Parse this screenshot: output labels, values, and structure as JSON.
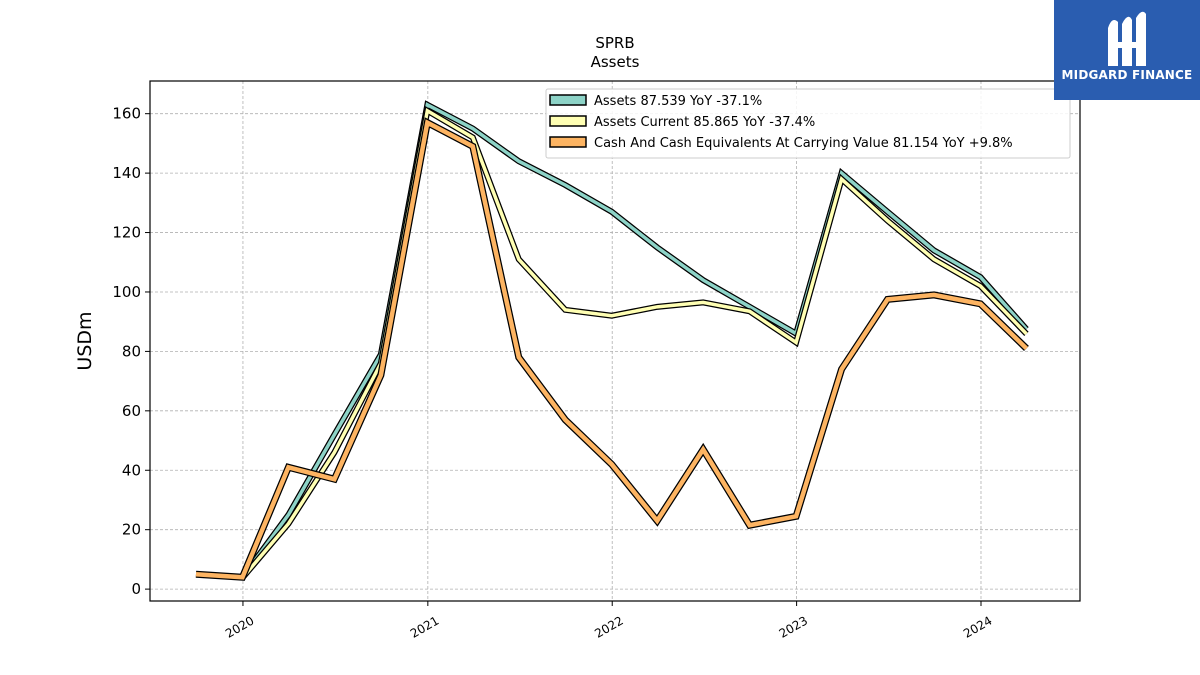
{
  "chart_data": {
    "type": "line",
    "title": "SPRB",
    "subtitle": "Assets",
    "ylabel": "USDm",
    "xlabel": "",
    "xlim": [
      "2019-07-01",
      "2024-07-15"
    ],
    "ylim": [
      -4,
      171
    ],
    "x_ticks": [
      "2020-01-01",
      "2021-01-01",
      "2022-01-01",
      "2023-01-01",
      "2024-01-01"
    ],
    "x_tick_labels": [
      "2020",
      "2021",
      "2022",
      "2023",
      "2024"
    ],
    "y_ticks": [
      0,
      20,
      40,
      60,
      80,
      100,
      120,
      140,
      160
    ],
    "y_tick_labels": [
      "0",
      "20",
      "40",
      "60",
      "80",
      "100",
      "120",
      "140",
      "160"
    ],
    "grid": true,
    "legend_position": "top-right",
    "x": [
      "2019-09-30",
      "2019-12-31",
      "2020-03-31",
      "2020-06-30",
      "2020-09-30",
      "2020-12-31",
      "2021-03-31",
      "2021-06-30",
      "2021-09-30",
      "2021-12-31",
      "2022-03-31",
      "2022-06-30",
      "2022-09-30",
      "2022-12-31",
      "2023-03-31",
      "2023-06-30",
      "2023-09-30",
      "2023-12-31",
      "2024-03-31"
    ],
    "series": [
      {
        "name": "Assets  87.539 YoY -37.1%",
        "color": "#8dd3c7",
        "values": [
          null,
          4.0,
          25.0,
          52.0,
          79.0,
          163.0,
          155.0,
          144.0,
          136.0,
          127.0,
          115.0,
          104.0,
          95.0,
          86.0,
          140.0,
          127.0,
          114.0,
          105.0,
          87.5
        ]
      },
      {
        "name": "Assets Current  85.865 YoY -37.4%",
        "color": "#ffffb3",
        "values": [
          null,
          3.8,
          22.0,
          46.0,
          76.0,
          161.0,
          152.0,
          111.0,
          94.0,
          92.0,
          95.0,
          96.5,
          93.5,
          83.0,
          138.0,
          124.0,
          111.0,
          102.0,
          85.9
        ]
      },
      {
        "name": "Cash And Cash Equivalents At Carrying Value  81.154 YoY +9.8%",
        "color": "#fdb462",
        "values": [
          5.0,
          4.0,
          41.0,
          37.0,
          72.0,
          157.0,
          149.0,
          78.0,
          57.0,
          42.0,
          23.0,
          47.0,
          21.5,
          24.5,
          74.0,
          97.5,
          99.0,
          96.0,
          81.0
        ]
      }
    ]
  },
  "brand": {
    "name": "MIDGARD FINANCE",
    "logo_icon": "midgard-logo-icon",
    "background": "#2a5db0"
  }
}
